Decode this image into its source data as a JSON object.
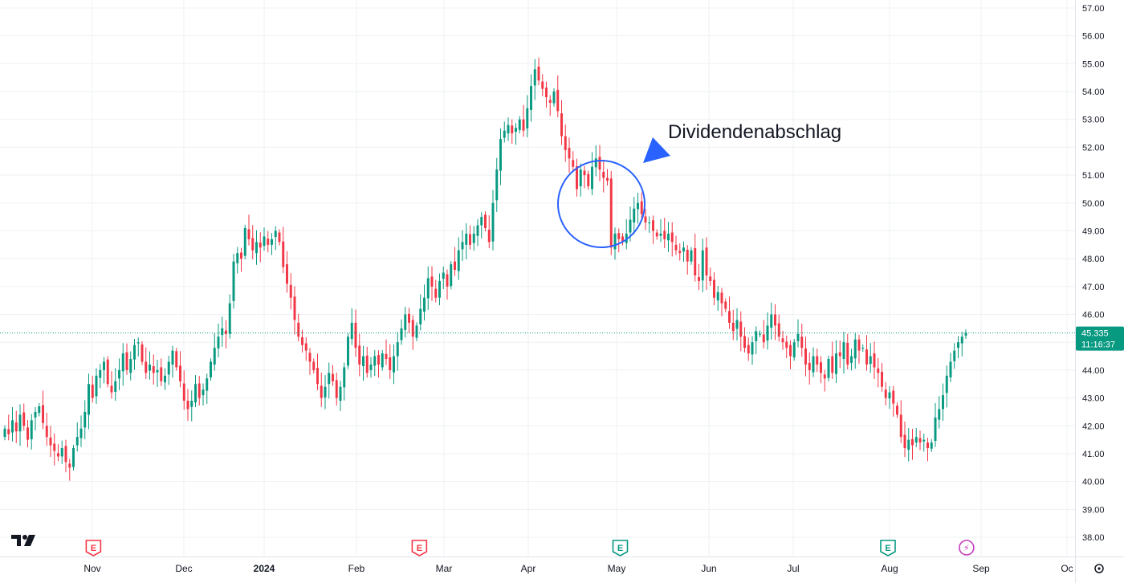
{
  "chart_data": {
    "type": "candlestick",
    "title": "",
    "xlabel": "",
    "ylabel": "",
    "ylim": [
      37.7,
      57.3
    ],
    "y_ticks": [
      "57.00",
      "56.00",
      "55.00",
      "54.00",
      "53.00",
      "52.00",
      "51.00",
      "50.00",
      "49.00",
      "48.00",
      "47.00",
      "46.00",
      "45.00",
      "44.00",
      "43.00",
      "42.00",
      "41.00",
      "40.00",
      "39.00",
      "38.00"
    ],
    "x_ticks": [
      {
        "label": "Nov",
        "bold": false
      },
      {
        "label": "Dec",
        "bold": false
      },
      {
        "label": "2024",
        "bold": true
      },
      {
        "label": "Feb",
        "bold": false
      },
      {
        "label": "Mar",
        "bold": false
      },
      {
        "label": "Apr",
        "bold": false
      },
      {
        "label": "May",
        "bold": false
      },
      {
        "label": "Jun",
        "bold": false
      },
      {
        "label": "Jul",
        "bold": false
      },
      {
        "label": "Aug",
        "bold": false
      },
      {
        "label": "Sep",
        "bold": false
      },
      {
        "label": "Oc",
        "bold": false
      }
    ],
    "last_price": 45.335,
    "last_price_label": "45.335",
    "countdown": "11:16:37",
    "up_color": "#089981",
    "down_color": "#f23645",
    "annotation": {
      "text": "Dividendenabschlag",
      "arrow_color": "#2962ff",
      "circle_color": "#2962ff"
    },
    "events": [
      {
        "letter": "E",
        "color": "#f23645",
        "date": "2023-11-01"
      },
      {
        "letter": "E",
        "color": "#f23645",
        "date": "2024-02-21"
      },
      {
        "letter": "E",
        "color": "#089981",
        "date": "2024-04-30"
      },
      {
        "letter": "E",
        "color": "#089981",
        "date": "2024-07-31"
      },
      {
        "letter": "⚡",
        "color": "#c43cbc",
        "date": "2024-08-27"
      }
    ],
    "closes": [
      41.9,
      41.7,
      42.2,
      41.8,
      42.4,
      42.0,
      41.5,
      42.2,
      42.5,
      42.7,
      42.1,
      41.6,
      41.3,
      41.1,
      40.9,
      41.2,
      40.7,
      40.5,
      41.2,
      41.6,
      41.9,
      42.5,
      43.5,
      43.0,
      43.8,
      44.0,
      44.3,
      43.5,
      43.2,
      43.6,
      44.0,
      44.6,
      44.0,
      44.4,
      44.9,
      45.0,
      44.3,
      43.9,
      44.2,
      43.9,
      44.0,
      43.6,
      43.8,
      44.3,
      44.7,
      44.1,
      43.6,
      42.9,
      42.6,
      42.9,
      43.5,
      43.0,
      43.3,
      43.7,
      44.3,
      44.8,
      45.2,
      45.5,
      45.3,
      46.4,
      47.9,
      48.2,
      48.0,
      49.1,
      48.7,
      48.3,
      48.6,
      48.4,
      48.8,
      48.5,
      48.7,
      49.0,
      48.6,
      47.7,
      47.1,
      46.6,
      45.8,
      45.2,
      44.9,
      44.7,
      44.3,
      44.0,
      43.5,
      43.0,
      43.4,
      43.9,
      43.6,
      43.0,
      43.4,
      44.1,
      45.2,
      45.7,
      44.8,
      44.2,
      44.5,
      43.9,
      44.2,
      44.5,
      44.2,
      44.6,
      44.4,
      44.0,
      44.5,
      45.0,
      45.5,
      46.0,
      45.7,
      45.2,
      45.6,
      46.2,
      46.6,
      47.3,
      47.0,
      46.6,
      47.2,
      47.5,
      47.0,
      47.8,
      47.6,
      48.3,
      48.6,
      48.9,
      48.5,
      48.9,
      49.2,
      49.5,
      49.1,
      48.6,
      50.0,
      51.2,
      52.3,
      52.6,
      52.8,
      52.5,
      52.7,
      53.0,
      52.6,
      53.4,
      54.2,
      54.8,
      54.4,
      54.1,
      53.8,
      53.6,
      54.0,
      53.3,
      52.4,
      51.9,
      51.6,
      51.3,
      50.5,
      51.2,
      51.0,
      50.6,
      51.3,
      51.6,
      51.2,
      50.9,
      50.8,
      48.4,
      48.9,
      48.7,
      48.6,
      48.9,
      49.4,
      49.8,
      50.0,
      49.6,
      49.3,
      49.3,
      49.0,
      48.8,
      48.9,
      48.7,
      48.9,
      48.6,
      48.3,
      48.2,
      48.4,
      47.9,
      48.3,
      47.4,
      47.2,
      48.3,
      47.4,
      47.2,
      46.6,
      46.8,
      46.4,
      46.2,
      45.7,
      45.4,
      45.8,
      45.2,
      44.8,
      44.6,
      45.0,
      45.4,
      45.3,
      45.0,
      45.6,
      46.0,
      45.6,
      45.2,
      45.0,
      44.8,
      44.5,
      45.0,
      45.3,
      44.8,
      44.2,
      44.0,
      44.5,
      44.2,
      43.9,
      43.7,
      44.4,
      43.9,
      44.6,
      44.5,
      45.0,
      44.2,
      44.5,
      45.1,
      44.7,
      44.8,
      44.2,
      44.5,
      44.1,
      43.9,
      43.4,
      43.0,
      43.2,
      42.8,
      42.4,
      41.6,
      41.2,
      41.5,
      41.3,
      41.6,
      41.4,
      41.5,
      41.2,
      41.4,
      42.3,
      42.6,
      43.1,
      43.8,
      44.3,
      44.7,
      45.0,
      45.2,
      45.34
    ]
  }
}
